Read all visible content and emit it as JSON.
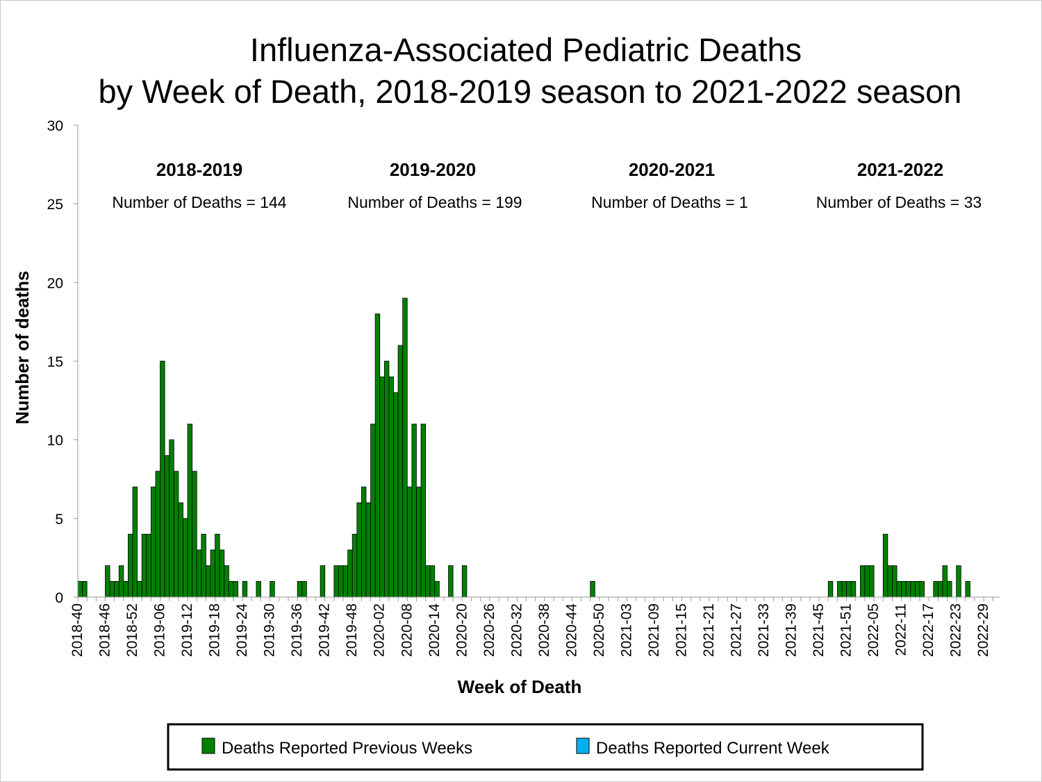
{
  "chart_data": {
    "type": "bar",
    "title": [
      "Influenza-Associated Pediatric Deaths",
      "by Week of Death, 2018-2019 season to 2021-2022 season"
    ],
    "xlabel": "Week of Death",
    "ylabel": "Number of deaths",
    "ylim": [
      0,
      30
    ],
    "yticks": [
      "0",
      "5",
      "10",
      "15",
      "20",
      "25",
      "30"
    ],
    "x_range": [
      "2018-40",
      "2022-29"
    ],
    "xtick_labels": [
      "2018-40",
      "2018-46",
      "2018-52",
      "2019-06",
      "2019-12",
      "2019-18",
      "2019-24",
      "2019-30",
      "2019-36",
      "2019-42",
      "2019-48",
      "2020-02",
      "2020-08",
      "2020-14",
      "2020-20",
      "2020-26",
      "2020-32",
      "2020-38",
      "2020-44",
      "2020-50",
      "2021-03",
      "2021-09",
      "2021-15",
      "2021-21",
      "2021-27",
      "2021-33",
      "2021-39",
      "2021-45",
      "2021-51",
      "2022-05",
      "2022-11",
      "2022-17",
      "2022-23",
      "2022-29"
    ],
    "grid": false,
    "legend_placement": "bottom",
    "series": [
      {
        "name": "Deaths Reported Previous Weeks",
        "color": "#008000",
        "points": [
          [
            "2018-40",
            1
          ],
          [
            "2018-41",
            1
          ],
          [
            "2018-46",
            2
          ],
          [
            "2018-47",
            1
          ],
          [
            "2018-48",
            1
          ],
          [
            "2018-49",
            2
          ],
          [
            "2018-50",
            1
          ],
          [
            "2018-51",
            4
          ],
          [
            "2018-52",
            7
          ],
          [
            "2019-01",
            1
          ],
          [
            "2019-02",
            4
          ],
          [
            "2019-03",
            4
          ],
          [
            "2019-04",
            7
          ],
          [
            "2019-05",
            8
          ],
          [
            "2019-06",
            15
          ],
          [
            "2019-07",
            9
          ],
          [
            "2019-08",
            10
          ],
          [
            "2019-09",
            8
          ],
          [
            "2019-10",
            6
          ],
          [
            "2019-11",
            5
          ],
          [
            "2019-12",
            11
          ],
          [
            "2019-13",
            8
          ],
          [
            "2019-14",
            3
          ],
          [
            "2019-15",
            4
          ],
          [
            "2019-16",
            2
          ],
          [
            "2019-17",
            3
          ],
          [
            "2019-18",
            4
          ],
          [
            "2019-19",
            3
          ],
          [
            "2019-20",
            2
          ],
          [
            "2019-21",
            1
          ],
          [
            "2019-22",
            1
          ],
          [
            "2019-24",
            1
          ],
          [
            "2019-27",
            1
          ],
          [
            "2019-30",
            1
          ],
          [
            "2019-36",
            1
          ],
          [
            "2019-37",
            1
          ],
          [
            "2019-41",
            2
          ],
          [
            "2019-44",
            2
          ],
          [
            "2019-45",
            2
          ],
          [
            "2019-46",
            2
          ],
          [
            "2019-47",
            3
          ],
          [
            "2019-48",
            4
          ],
          [
            "2019-49",
            6
          ],
          [
            "2019-50",
            7
          ],
          [
            "2019-51",
            6
          ],
          [
            "2019-52",
            11
          ],
          [
            "2020-01",
            18
          ],
          [
            "2020-02",
            14
          ],
          [
            "2020-03",
            15
          ],
          [
            "2020-04",
            14
          ],
          [
            "2020-05",
            13
          ],
          [
            "2020-06",
            16
          ],
          [
            "2020-07",
            19
          ],
          [
            "2020-08",
            7
          ],
          [
            "2020-09",
            11
          ],
          [
            "2020-10",
            7
          ],
          [
            "2020-11",
            11
          ],
          [
            "2020-12",
            2
          ],
          [
            "2020-13",
            2
          ],
          [
            "2020-14",
            1
          ],
          [
            "2020-17",
            2
          ],
          [
            "2020-20",
            2
          ],
          [
            "2020-48",
            1
          ],
          [
            "2021-47",
            1
          ],
          [
            "2021-49",
            1
          ],
          [
            "2021-50",
            1
          ],
          [
            "2021-51",
            1
          ],
          [
            "2021-52",
            1
          ],
          [
            "2022-02",
            2
          ],
          [
            "2022-03",
            2
          ],
          [
            "2022-04",
            2
          ],
          [
            "2022-07",
            4
          ],
          [
            "2022-08",
            2
          ],
          [
            "2022-09",
            2
          ],
          [
            "2022-10",
            1
          ],
          [
            "2022-11",
            1
          ],
          [
            "2022-12",
            1
          ],
          [
            "2022-13",
            1
          ],
          [
            "2022-14",
            1
          ],
          [
            "2022-15",
            1
          ],
          [
            "2022-18",
            1
          ],
          [
            "2022-19",
            1
          ],
          [
            "2022-20",
            2
          ],
          [
            "2022-21",
            1
          ],
          [
            "2022-23",
            2
          ],
          [
            "2022-25",
            1
          ]
        ]
      },
      {
        "name": "Deaths Reported Current Week",
        "color": "#00b0f0",
        "points": []
      }
    ],
    "annotations": [
      {
        "season": "2018-2019",
        "text": "Number of Deaths = 144"
      },
      {
        "season": "2019-2020",
        "text": "Number of Deaths = 199"
      },
      {
        "season": "2020-2021",
        "text": "Number of Deaths = 1"
      },
      {
        "season": "2021-2022",
        "text": "Number of Deaths = 33"
      }
    ]
  }
}
